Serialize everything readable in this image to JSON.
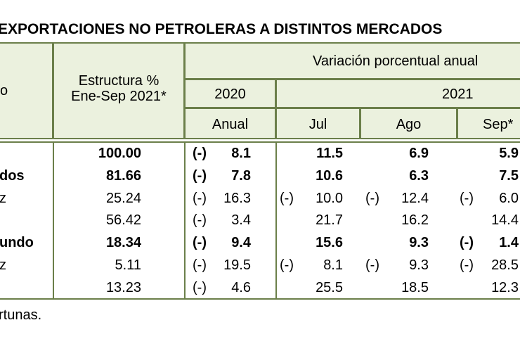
{
  "header": {
    "title": "EXPORTACIONES NO PETROLERAS A DISTINTOS MERCADOS"
  },
  "table": {
    "corner_label": "o",
    "structure_header": "Estructura %\nEne-Sep 2021*",
    "variation_header": "Variación porcentual anual",
    "years": [
      "2020",
      "2021"
    ],
    "periods": [
      "Anual",
      "Jul",
      "Ago",
      "Sep*"
    ],
    "rows": [
      {
        "label": null,
        "bold": true,
        "structure": "100.00",
        "cells": [
          {
            "sign": "(-)",
            "value": "8.1"
          },
          {
            "value": "11.5"
          },
          {
            "value": "6.9"
          },
          {
            "value": "5.9"
          }
        ]
      },
      {
        "label": "dos",
        "bold": true,
        "structure": "81.66",
        "cells": [
          {
            "sign": "(-)",
            "value": "7.8"
          },
          {
            "value": "10.6"
          },
          {
            "value": "6.3"
          },
          {
            "value": "7.5"
          }
        ]
      },
      {
        "label": "z",
        "bold": false,
        "structure": "25.24",
        "cells": [
          {
            "sign": "(-)",
            "value": "16.3"
          },
          {
            "sign": "(-)",
            "value": "10.0"
          },
          {
            "sign": "(-)",
            "value": "12.4"
          },
          {
            "sign": "(-)",
            "value": "6.0"
          }
        ]
      },
      {
        "label": null,
        "bold": false,
        "structure": "56.42",
        "cells": [
          {
            "sign": "(-)",
            "value": "3.4"
          },
          {
            "value": "21.7"
          },
          {
            "value": "16.2"
          },
          {
            "value": "14.4"
          }
        ]
      },
      {
        "label": "undo",
        "bold": true,
        "structure": "18.34",
        "cells": [
          {
            "sign": "(-)",
            "value": "9.4"
          },
          {
            "value": "15.6"
          },
          {
            "value": "9.3"
          },
          {
            "sign": "(-)",
            "value": "1.4"
          }
        ]
      },
      {
        "label": "z",
        "bold": false,
        "structure": "5.11",
        "cells": [
          {
            "sign": "(-)",
            "value": "19.5"
          },
          {
            "sign": "(-)",
            "value": "8.1"
          },
          {
            "sign": "(-)",
            "value": "9.3"
          },
          {
            "sign": "(-)",
            "value": "28.5"
          }
        ]
      },
      {
        "label": null,
        "bold": false,
        "structure": "13.23",
        "cells": [
          {
            "sign": "(-)",
            "value": "4.6"
          },
          {
            "value": "25.5"
          },
          {
            "value": "18.5"
          },
          {
            "value": "12.3"
          }
        ]
      }
    ]
  },
  "footer": {
    "note": "rtunas."
  }
}
